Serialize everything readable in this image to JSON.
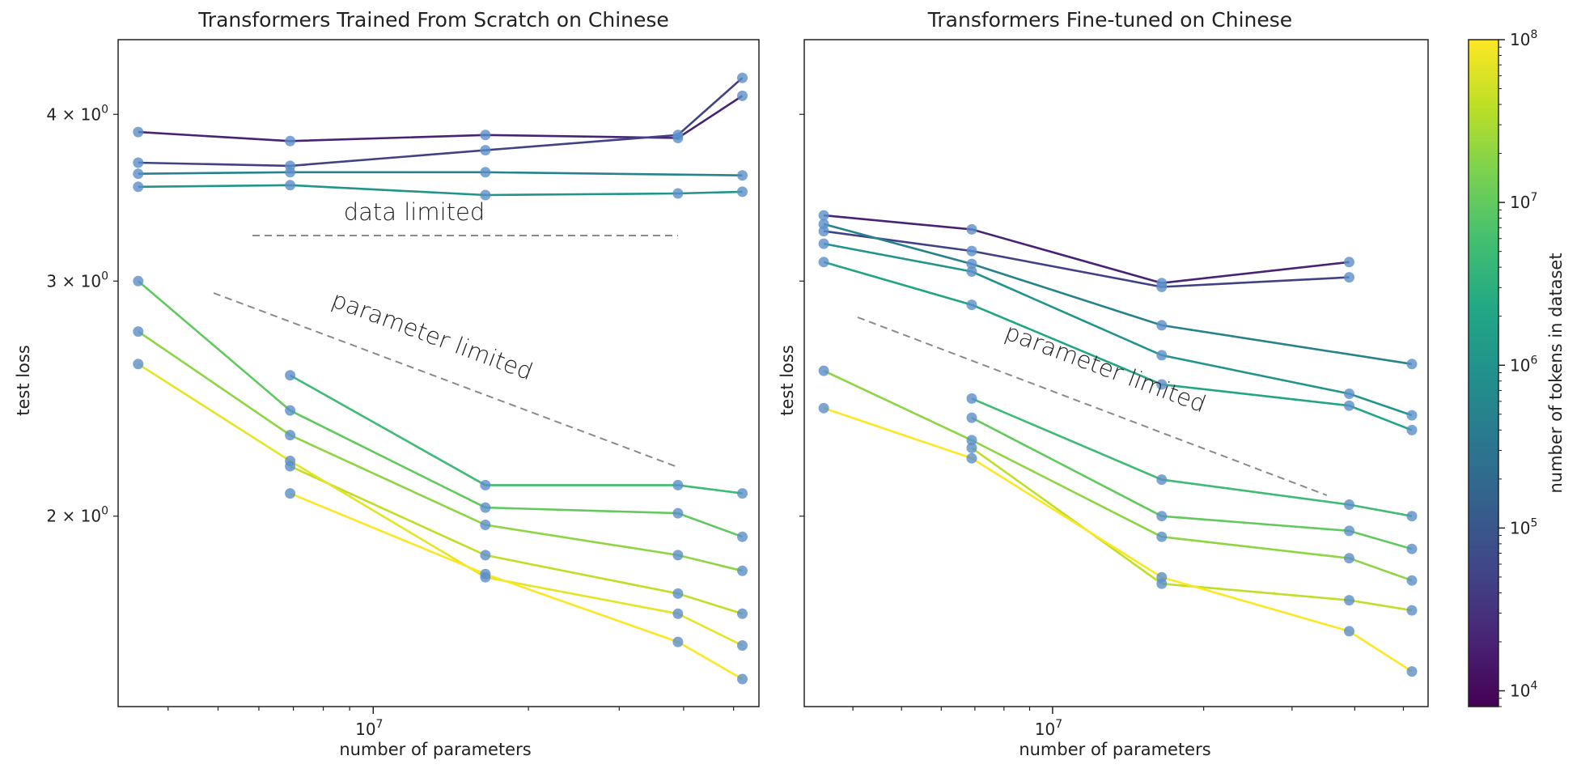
{
  "figure": {
    "colorbar": {
      "label": "number of tokens in dataset",
      "ticks": [
        {
          "value": 10000,
          "label_base": "10",
          "label_exp": "4"
        },
        {
          "value": 100000,
          "label_base": "10",
          "label_exp": "5"
        },
        {
          "value": 1000000,
          "label_base": "10",
          "label_exp": "6"
        },
        {
          "value": 10000000,
          "label_base": "10",
          "label_exp": "7"
        },
        {
          "value": 100000000,
          "label_base": "10",
          "label_exp": "8"
        }
      ],
      "scale": "log",
      "range": [
        8000,
        100000000
      ],
      "colormap": "viridis"
    },
    "marker_color": "#5b8fc9"
  },
  "chart_data": [
    {
      "type": "line",
      "title": "Transformers Trained From Scratch on Chinese",
      "xlabel": "number of parameters",
      "ylabel": "test loss",
      "xscale": "log",
      "yscale": "log",
      "xlim": [
        3200000,
        56000000
      ],
      "ylim": [
        1.44,
        4.55
      ],
      "x_ticks": [
        {
          "value": 10000000,
          "label_base": "10",
          "label_exp": "7"
        }
      ],
      "y_ticks": [
        {
          "value": 2,
          "label_base": "2 × 10",
          "label_exp": "0"
        },
        {
          "value": 3,
          "label_base": "3 × 10",
          "label_exp": "0"
        },
        {
          "value": 4,
          "label_base": "4 × 10",
          "label_exp": "0"
        }
      ],
      "annotations": [
        {
          "text": "data limited"
        },
        {
          "text": "parameter limited"
        }
      ],
      "series": [
        {
          "tokens": 20000,
          "x": [
            3500000,
            6900000,
            16500000,
            39000000,
            52000000
          ],
          "y": [
            3.88,
            3.82,
            3.86,
            3.84,
            4.13
          ]
        },
        {
          "tokens": 50000,
          "x": [
            3500000,
            6900000,
            16500000,
            39000000,
            52000000
          ],
          "y": [
            3.68,
            3.66,
            3.76,
            3.86,
            4.26
          ]
        },
        {
          "tokens": 500000,
          "x": [
            3500000,
            6900000,
            16500000,
            52000000
          ],
          "y": [
            3.61,
            3.62,
            3.62,
            3.6
          ]
        },
        {
          "tokens": 1000000,
          "x": [
            3500000,
            6900000,
            16500000,
            39000000,
            52000000
          ],
          "y": [
            3.53,
            3.54,
            3.48,
            3.49,
            3.5
          ]
        },
        {
          "tokens": 5000000,
          "x": [
            6900000,
            16500000,
            39000000,
            52000000
          ],
          "y": [
            2.55,
            2.11,
            2.11,
            2.08
          ]
        },
        {
          "tokens": 10000000,
          "x": [
            3500000,
            6900000,
            16500000,
            39000000,
            52000000
          ],
          "y": [
            3.0,
            2.4,
            2.03,
            2.01,
            1.93
          ]
        },
        {
          "tokens": 20000000,
          "x": [
            3500000,
            6900000,
            16500000,
            39000000,
            52000000
          ],
          "y": [
            2.75,
            2.3,
            1.97,
            1.87,
            1.82
          ]
        },
        {
          "tokens": 40000000,
          "x": [
            6900000,
            16500000,
            39000000,
            52000000
          ],
          "y": [
            2.18,
            1.87,
            1.75,
            1.69
          ]
        },
        {
          "tokens": 70000000,
          "x": [
            3500000,
            6900000,
            16500000,
            39000000,
            52000000
          ],
          "y": [
            2.6,
            2.2,
            1.8,
            1.69,
            1.6
          ]
        },
        {
          "tokens": 100000000,
          "x": [
            6900000,
            16500000,
            39000000,
            52000000
          ],
          "y": [
            2.08,
            1.81,
            1.61,
            1.51
          ]
        }
      ]
    },
    {
      "type": "line",
      "title": "Transformers Fine-tuned on Chinese",
      "xlabel": "number of parameters",
      "ylabel": "test loss",
      "xscale": "log",
      "yscale": "log",
      "xlim": [
        3200000,
        56000000
      ],
      "ylim": [
        1.44,
        4.55
      ],
      "x_ticks": [
        {
          "value": 10000000,
          "label_base": "10",
          "label_exp": "7"
        }
      ],
      "y_ticks": [],
      "annotations": [
        {
          "text": "parameter limited"
        }
      ],
      "series": [
        {
          "tokens": 20000,
          "x": [
            3500000,
            6900000,
            16500000,
            39000000
          ],
          "y": [
            3.36,
            3.28,
            2.99,
            3.1
          ]
        },
        {
          "tokens": 50000,
          "x": [
            3500000,
            6900000,
            16500000,
            39000000
          ],
          "y": [
            3.27,
            3.16,
            2.97,
            3.02
          ]
        },
        {
          "tokens": 500000,
          "x": [
            3500000,
            6900000,
            16500000,
            52000000
          ],
          "y": [
            3.31,
            3.09,
            2.78,
            2.6
          ]
        },
        {
          "tokens": 1000000,
          "x": [
            3500000,
            6900000,
            16500000,
            39000000,
            52000000
          ],
          "y": [
            3.2,
            3.05,
            2.64,
            2.47,
            2.38
          ]
        },
        {
          "tokens": 2000000,
          "x": [
            3500000,
            6900000,
            16500000,
            39000000,
            52000000
          ],
          "y": [
            3.1,
            2.88,
            2.51,
            2.42,
            2.32
          ]
        },
        {
          "tokens": 5000000,
          "x": [
            6900000,
            16500000,
            39000000,
            52000000
          ],
          "y": [
            2.45,
            2.13,
            2.04,
            2.0
          ]
        },
        {
          "tokens": 10000000,
          "x": [
            6900000,
            16500000,
            39000000,
            52000000
          ],
          "y": [
            2.37,
            2.0,
            1.95,
            1.89
          ]
        },
        {
          "tokens": 20000000,
          "x": [
            3500000,
            6900000,
            16500000,
            39000000,
            52000000
          ],
          "y": [
            2.57,
            2.28,
            1.93,
            1.86,
            1.79
          ]
        },
        {
          "tokens": 40000000,
          "x": [
            6900000,
            16500000,
            39000000,
            52000000
          ],
          "y": [
            2.25,
            1.78,
            1.73,
            1.7
          ]
        },
        {
          "tokens": 100000000,
          "x": [
            3500000,
            6900000,
            16500000,
            39000000,
            52000000
          ],
          "y": [
            2.41,
            2.21,
            1.8,
            1.64,
            1.53
          ]
        }
      ]
    }
  ]
}
